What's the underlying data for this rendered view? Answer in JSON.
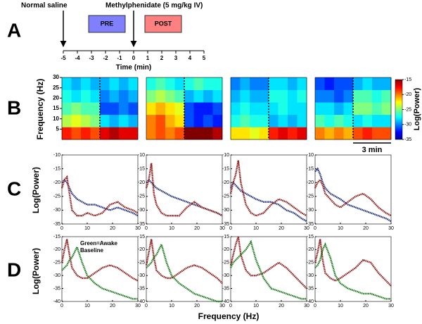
{
  "panels": [
    "A",
    "B",
    "C",
    "D"
  ],
  "timeline": {
    "xlabel": "Time (min)",
    "xlim": [
      -5,
      5
    ],
    "xticks": [
      -5,
      -4,
      -3,
      -2,
      -1,
      0,
      1,
      2,
      3,
      4,
      5
    ],
    "events": [
      {
        "label": "Normal saline",
        "time": -5
      },
      {
        "label": "Methylphenidate (5 mg/kg IV)",
        "time": 0
      }
    ],
    "windows": [
      {
        "label": "PRE",
        "start": -3.2,
        "end": -0.6,
        "color": "#8080ff"
      },
      {
        "label": "POST",
        "start": 0.8,
        "end": 3.4,
        "color": "#ff8080"
      }
    ]
  },
  "spectrogram_ylabel": "Frequency (Hz)",
  "colorbar": {
    "label": "Log(Power)",
    "lim": [
      -35,
      -15
    ],
    "ticks": [
      -15,
      -20,
      -25,
      -30,
      -35
    ]
  },
  "scale_bar": "3 min",
  "power_ylabel": "Log(Power)",
  "xlabel": "Frequency (Hz)",
  "chart_data": [
    {
      "type": "heatmap",
      "ylim": [
        0,
        30
      ],
      "yticks": [
        5,
        10,
        15,
        20,
        25,
        30
      ],
      "values": [
        [
          -18,
          -19,
          -18,
          -19,
          -17,
          -16,
          -17,
          -17
        ],
        [
          -24,
          -23,
          -24,
          -25,
          -28,
          -29,
          -28,
          -29
        ],
        [
          -26,
          -25,
          -26,
          -26,
          -31,
          -31,
          -30,
          -31
        ],
        [
          -27,
          -28,
          -27,
          -28,
          -30,
          -29,
          -30,
          -29
        ],
        [
          -28,
          -29,
          -28,
          -29,
          -29,
          -28,
          -29,
          -28
        ]
      ]
    },
    {
      "type": "heatmap",
      "ylim": [
        0,
        30
      ],
      "values": [
        [
          -20,
          -19,
          -20,
          -19,
          -15,
          -15,
          -15,
          -16
        ],
        [
          -20,
          -19,
          -21,
          -22,
          -31,
          -32,
          -31,
          -32
        ],
        [
          -22,
          -21,
          -22,
          -23,
          -31,
          -32,
          -32,
          -31
        ],
        [
          -25,
          -24,
          -25,
          -26,
          -29,
          -28,
          -29,
          -28
        ],
        [
          -27,
          -26,
          -27,
          -28,
          -27,
          -26,
          -27,
          -27
        ]
      ]
    },
    {
      "type": "heatmap",
      "ylim": [
        0,
        30
      ],
      "values": [
        [
          -22,
          -22,
          -23,
          -22,
          -18,
          -17,
          -18,
          -17
        ],
        [
          -27,
          -26,
          -27,
          -27,
          -29,
          -28,
          -29,
          -28
        ],
        [
          -28,
          -27,
          -28,
          -28,
          -28,
          -27,
          -28,
          -28
        ],
        [
          -29,
          -28,
          -29,
          -29,
          -27,
          -27,
          -28,
          -27
        ],
        [
          -30,
          -29,
          -30,
          -30,
          -28,
          -28,
          -29,
          -28
        ]
      ]
    },
    {
      "type": "heatmap",
      "ylim": [
        0,
        30
      ],
      "values": [
        [
          -20,
          -21,
          -20,
          -21,
          -19,
          -18,
          -19,
          -19
        ],
        [
          -26,
          -27,
          -26,
          -27,
          -28,
          -27,
          -28,
          -28
        ],
        [
          -28,
          -28,
          -29,
          -28,
          -25,
          -25,
          -26,
          -25
        ],
        [
          -30,
          -30,
          -31,
          -30,
          -26,
          -26,
          -27,
          -26
        ],
        [
          -31,
          -32,
          -31,
          -31,
          -29,
          -28,
          -29,
          -29
        ]
      ]
    },
    {
      "type": "line",
      "xlim": [
        0,
        30
      ],
      "xticks": [
        0,
        10,
        20,
        30
      ],
      "ylim": [
        -35,
        -10
      ],
      "yticks": [
        -10,
        -15,
        -20,
        -25,
        -30,
        -35
      ],
      "x": [
        0,
        1,
        2,
        3,
        4,
        6,
        8,
        10,
        13,
        16,
        19,
        22,
        25,
        28,
        30
      ],
      "series": [
        {
          "color": "#1f2f7a",
          "values": [
            -20,
            -19,
            -20,
            -22,
            -24,
            -26,
            -27,
            -28,
            -28,
            -29,
            -30,
            -29,
            -30,
            -31,
            -32
          ]
        },
        {
          "color": "#8b1c1c",
          "values": [
            -22,
            -19,
            -18,
            -24,
            -30,
            -32,
            -32,
            -31,
            -32,
            -31,
            -28,
            -27,
            -29,
            -30,
            -31
          ]
        }
      ]
    },
    {
      "type": "line",
      "xlim": [
        0,
        30
      ],
      "xticks": [
        0,
        10,
        20,
        30
      ],
      "ylim": [
        -35,
        -10
      ],
      "yticks": [
        -10,
        -15,
        -20,
        -25,
        -30,
        -35
      ],
      "x": [
        0,
        1,
        2,
        3,
        4,
        6,
        8,
        10,
        13,
        16,
        19,
        22,
        25,
        28,
        30
      ],
      "series": [
        {
          "color": "#1f2f7a",
          "values": [
            -20,
            -19,
            -20,
            -21,
            -22,
            -23,
            -24,
            -25,
            -26,
            -27,
            -28,
            -29,
            -30,
            -31,
            -32
          ]
        },
        {
          "color": "#8b1c1c",
          "values": [
            -22,
            -19,
            -13,
            -24,
            -28,
            -31,
            -32,
            -32,
            -32,
            -29,
            -27,
            -29,
            -30,
            -31,
            -32
          ]
        }
      ]
    },
    {
      "type": "line",
      "xlim": [
        0,
        30
      ],
      "xticks": [
        0,
        10,
        20,
        30
      ],
      "ylim": [
        -35,
        -10
      ],
      "yticks": [
        -10,
        -15,
        -20,
        -25,
        -30,
        -35
      ],
      "x": [
        0,
        1,
        2,
        3,
        4,
        6,
        8,
        10,
        13,
        16,
        19,
        22,
        25,
        28,
        30
      ],
      "series": [
        {
          "color": "#1f2f7a",
          "values": [
            -22,
            -20,
            -21,
            -22,
            -23,
            -24,
            -25,
            -26,
            -27,
            -27,
            -28,
            -30,
            -31,
            -33,
            -34
          ]
        },
        {
          "color": "#8b1c1c",
          "values": [
            -24,
            -20,
            -17,
            -12,
            -20,
            -28,
            -31,
            -32,
            -31,
            -28,
            -26,
            -27,
            -29,
            -31,
            -32
          ]
        }
      ]
    },
    {
      "type": "line",
      "xlim": [
        0,
        30
      ],
      "xticks": [
        0,
        10,
        20,
        30
      ],
      "ylim": [
        -35,
        -10
      ],
      "yticks": [
        -10,
        -15,
        -20,
        -25,
        -30,
        -35
      ],
      "x": [
        0,
        1,
        2,
        3,
        4,
        6,
        8,
        10,
        13,
        16,
        19,
        22,
        25,
        28,
        30
      ],
      "series": [
        {
          "color": "#1f2f7a",
          "values": [
            -16,
            -15,
            -17,
            -20,
            -22,
            -24,
            -25,
            -26,
            -28,
            -29,
            -30,
            -31,
            -32,
            -33,
            -34
          ]
        },
        {
          "color": "#8b1c1c",
          "values": [
            -22,
            -20,
            -19,
            -21,
            -24,
            -26,
            -28,
            -29,
            -27,
            -25,
            -24,
            -26,
            -29,
            -31,
            -32
          ]
        }
      ]
    },
    {
      "type": "line",
      "xlim": [
        0,
        30
      ],
      "xticks": [
        0,
        10,
        20,
        30
      ],
      "ylim": [
        -40,
        -15
      ],
      "yticks": [
        -15,
        -20,
        -25,
        -30,
        -35,
        -40
      ],
      "annotation": [
        "Green=Awake",
        "Baseline"
      ],
      "x": [
        0,
        1,
        2,
        3,
        4,
        6,
        8,
        10,
        13,
        16,
        19,
        22,
        25,
        28,
        30
      ],
      "series": [
        {
          "color": "#8b1c1c",
          "values": [
            -25,
            -20,
            -16,
            -22,
            -27,
            -30,
            -31,
            -31,
            -29,
            -27,
            -26,
            -27,
            -29,
            -31,
            -32
          ]
        },
        {
          "color": "#1e7a1e",
          "values": [
            -28,
            -27,
            -26,
            -24,
            -23,
            -19,
            -25,
            -30,
            -33,
            -35,
            -36,
            -37,
            -38,
            -39,
            -39
          ]
        }
      ]
    },
    {
      "type": "line",
      "xlim": [
        0,
        30
      ],
      "xticks": [
        0,
        10,
        20,
        30
      ],
      "ylim": [
        -40,
        -15
      ],
      "yticks": [
        -15,
        -20,
        -25,
        -30,
        -35,
        -40
      ],
      "x": [
        0,
        1,
        2,
        3,
        4,
        6,
        8,
        10,
        13,
        16,
        19,
        22,
        25,
        28,
        30
      ],
      "series": [
        {
          "color": "#8b1c1c",
          "values": [
            -26,
            -21,
            -16,
            -23,
            -28,
            -30,
            -31,
            -31,
            -29,
            -27,
            -26,
            -27,
            -29,
            -31,
            -33
          ]
        },
        {
          "color": "#1e7a1e",
          "values": [
            -27,
            -26,
            -25,
            -23,
            -22,
            -18,
            -25,
            -30,
            -33,
            -35,
            -37,
            -38,
            -39,
            -40,
            -40
          ]
        }
      ]
    },
    {
      "type": "line",
      "xlim": [
        0,
        30
      ],
      "xticks": [
        0,
        10,
        20,
        30
      ],
      "ylim": [
        -40,
        -15
      ],
      "yticks": [
        -15,
        -20,
        -25,
        -30,
        -35,
        -40
      ],
      "x": [
        0,
        1,
        2,
        3,
        4,
        6,
        8,
        10,
        13,
        16,
        19,
        22,
        25,
        28,
        30
      ],
      "series": [
        {
          "color": "#8b1c1c",
          "values": [
            -26,
            -22,
            -18,
            -15,
            -22,
            -28,
            -30,
            -30,
            -29,
            -27,
            -25,
            -27,
            -30,
            -33,
            -35
          ]
        },
        {
          "color": "#1e7a1e",
          "values": [
            -27,
            -25,
            -24,
            -23,
            -22,
            -20,
            -17,
            -24,
            -31,
            -35,
            -36,
            -37,
            -38,
            -39,
            -39
          ]
        }
      ]
    },
    {
      "type": "line",
      "xlim": [
        0,
        30
      ],
      "xticks": [
        0,
        10,
        20,
        30
      ],
      "ylim": [
        -40,
        -15
      ],
      "yticks": [
        -15,
        -20,
        -25,
        -30,
        -35,
        -40
      ],
      "x": [
        0,
        1,
        2,
        3,
        4,
        6,
        8,
        10,
        13,
        16,
        19,
        22,
        25,
        28,
        30
      ],
      "series": [
        {
          "color": "#8b1c1c",
          "values": [
            -25,
            -21,
            -16,
            -24,
            -29,
            -31,
            -32,
            -31,
            -29,
            -27,
            -24,
            -25,
            -29,
            -32,
            -34
          ]
        },
        {
          "color": "#1e7a1e",
          "values": [
            -27,
            -26,
            -24,
            -20,
            -18,
            -23,
            -30,
            -33,
            -35,
            -36,
            -37,
            -37,
            -38,
            -39,
            -39
          ]
        }
      ]
    }
  ]
}
